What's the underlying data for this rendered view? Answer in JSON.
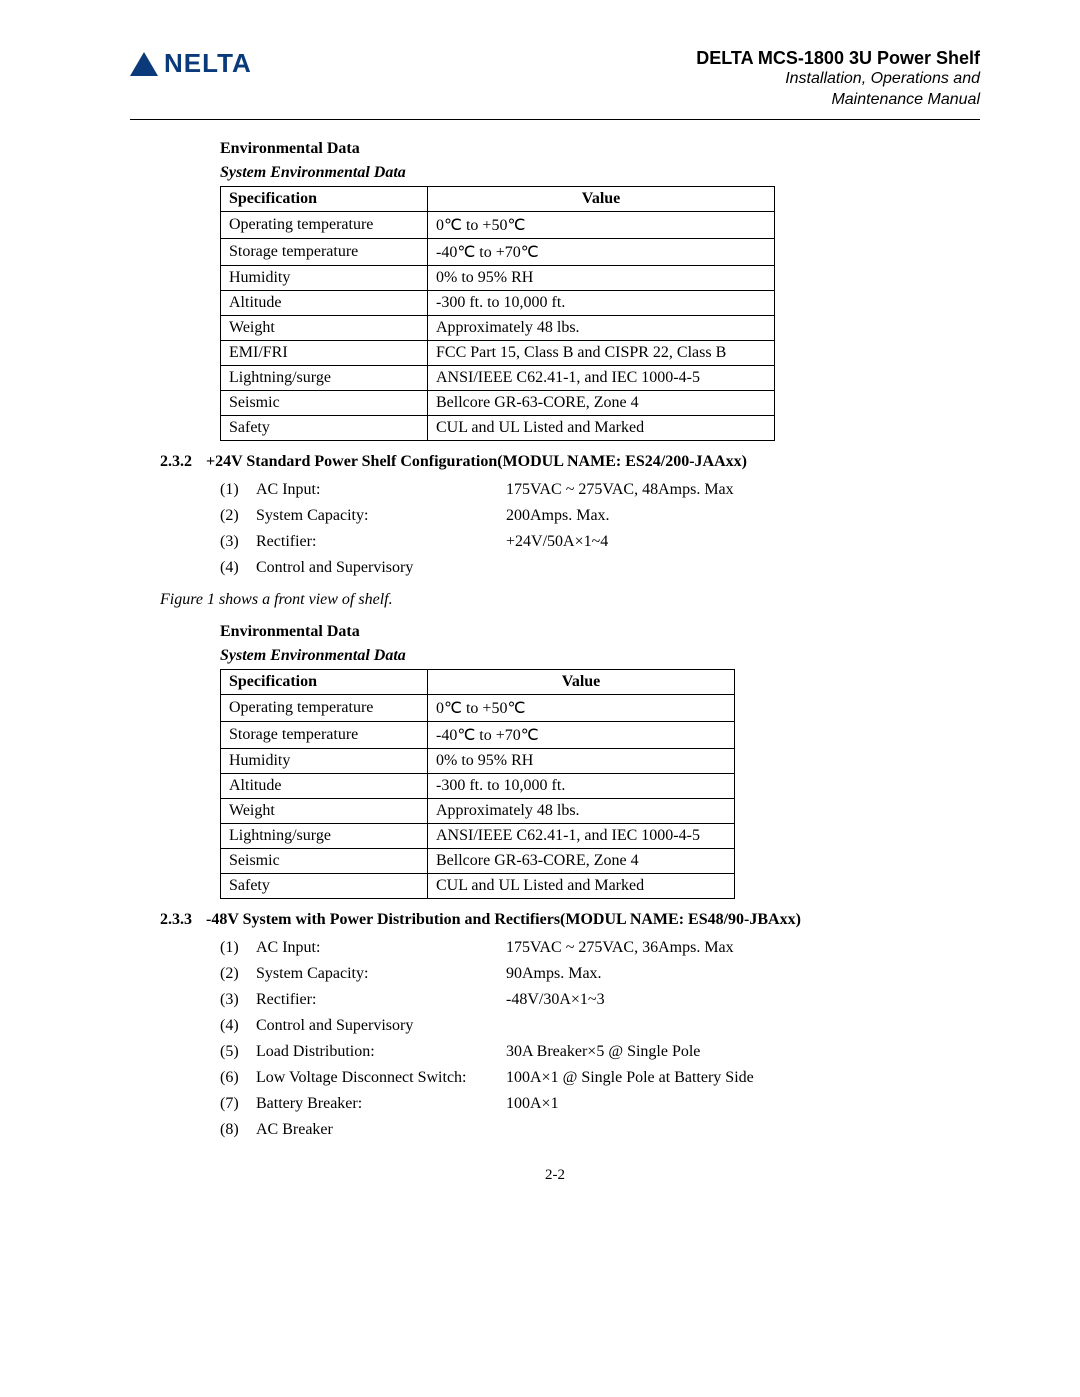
{
  "header": {
    "logo_text": "NELTA",
    "title": "DELTA MCS-1800 3U Power Shelf",
    "sub1": "Installation, Operations and",
    "sub2": "Maintenance Manual"
  },
  "section1": {
    "env_heading": "Environmental Data",
    "sys_heading": "System Environmental Data",
    "columns": [
      "Specification",
      "Value"
    ],
    "rows": [
      [
        "Operating temperature",
        "0℃  to +50℃"
      ],
      [
        "Storage temperature",
        "-40℃  to +70℃"
      ],
      [
        "Humidity",
        "0% to 95% RH"
      ],
      [
        "Altitude",
        "-300 ft. to 10,000 ft."
      ],
      [
        "Weight",
        "Approximately 48 lbs."
      ],
      [
        "EMI/FRI",
        "FCC Part 15, Class B and CISPR 22, Class B"
      ],
      [
        "Lightning/surge",
        "ANSI/IEEE C62.41-1, and IEC 1000-4-5"
      ],
      [
        "Seismic",
        "Bellcore GR-63-CORE, Zone 4"
      ],
      [
        "Safety",
        "CUL and UL Listed and Marked"
      ]
    ]
  },
  "sub232": {
    "num": "2.3.2",
    "title": "+24V Standard Power Shelf Configuration(MODUL NAME: ES24/200-JAAxx)",
    "items": [
      {
        "n": "(1)",
        "label": "AC Input:",
        "val": "175VAC ~ 275VAC, 48Amps. Max"
      },
      {
        "n": "(2)",
        "label": "System Capacity:",
        "val": "200Amps. Max."
      },
      {
        "n": "(3)",
        "label": "Rectifier:",
        "val": "+24V/50A×1~4"
      },
      {
        "n": "(4)",
        "label": "Control and Supervisory",
        "val": ""
      }
    ],
    "figcap": "Figure 1 shows a front view of shelf."
  },
  "section2": {
    "env_heading": "Environmental Data",
    "sys_heading": "System Environmental Data",
    "columns": [
      "Specification",
      "Value"
    ],
    "rows": [
      [
        "Operating temperature",
        "0℃  to +50℃"
      ],
      [
        "Storage temperature",
        "-40℃  to +70℃"
      ],
      [
        "Humidity",
        "0% to 95% RH"
      ],
      [
        "Altitude",
        "-300 ft. to 10,000 ft."
      ],
      [
        "Weight",
        "Approximately 48 lbs."
      ],
      [
        "Lightning/surge",
        "ANSI/IEEE C62.41-1, and IEC 1000-4-5"
      ],
      [
        "Seismic",
        "Bellcore GR-63-CORE, Zone 4"
      ],
      [
        "Safety",
        "CUL and UL Listed and Marked"
      ]
    ]
  },
  "sub233": {
    "num": "2.3.3",
    "title": "-48V System with Power Distribution and Rectifiers(MODUL NAME: ES48/90-JBAxx)",
    "items": [
      {
        "n": "(1)",
        "label": "AC Input:",
        "val": "175VAC ~ 275VAC, 36Amps. Max"
      },
      {
        "n": "(2)",
        "label": "System Capacity:",
        "val": "90Amps. Max."
      },
      {
        "n": "(3)",
        "label": "Rectifier:",
        "val": "-48V/30A×1~3"
      },
      {
        "n": "(4)",
        "label": "Control and Supervisory",
        "val": ""
      },
      {
        "n": "(5)",
        "label": "Load Distribution:",
        "val": "30A Breaker×5 @ Single Pole"
      },
      {
        "n": "(6)",
        "label": "Low Voltage Disconnect Switch:",
        "val": "100A×1 @ Single Pole at Battery Side"
      },
      {
        "n": "(7)",
        "label": "Battery Breaker:",
        "val": "100A×1"
      },
      {
        "n": "(8)",
        "label": "AC Breaker",
        "val": ""
      }
    ]
  },
  "pagenum": "2-2"
}
